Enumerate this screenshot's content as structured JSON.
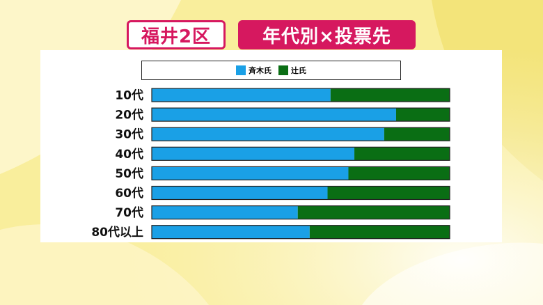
{
  "header": {
    "region_label": "福井2区",
    "topic_label": "年代別×投票先"
  },
  "colors": {
    "accent": "#d6185f",
    "saiki": "#1aa0e6",
    "tsuji": "#0a6e14"
  },
  "chart_data": {
    "type": "bar",
    "orientation": "horizontal",
    "stacked": true,
    "normalized": true,
    "categories": [
      "10代",
      "20代",
      "30代",
      "40代",
      "50代",
      "60代",
      "70代",
      "80代以上"
    ],
    "series": [
      {
        "name": "斉木氏",
        "color": "#1aa0e6",
        "values": [
          60,
          82,
          78,
          68,
          66,
          59,
          49,
          53
        ]
      },
      {
        "name": "辻氏",
        "color": "#0a6e14",
        "values": [
          40,
          18,
          22,
          32,
          34,
          41,
          51,
          47
        ]
      }
    ],
    "legend_position": "top",
    "grid": false
  }
}
